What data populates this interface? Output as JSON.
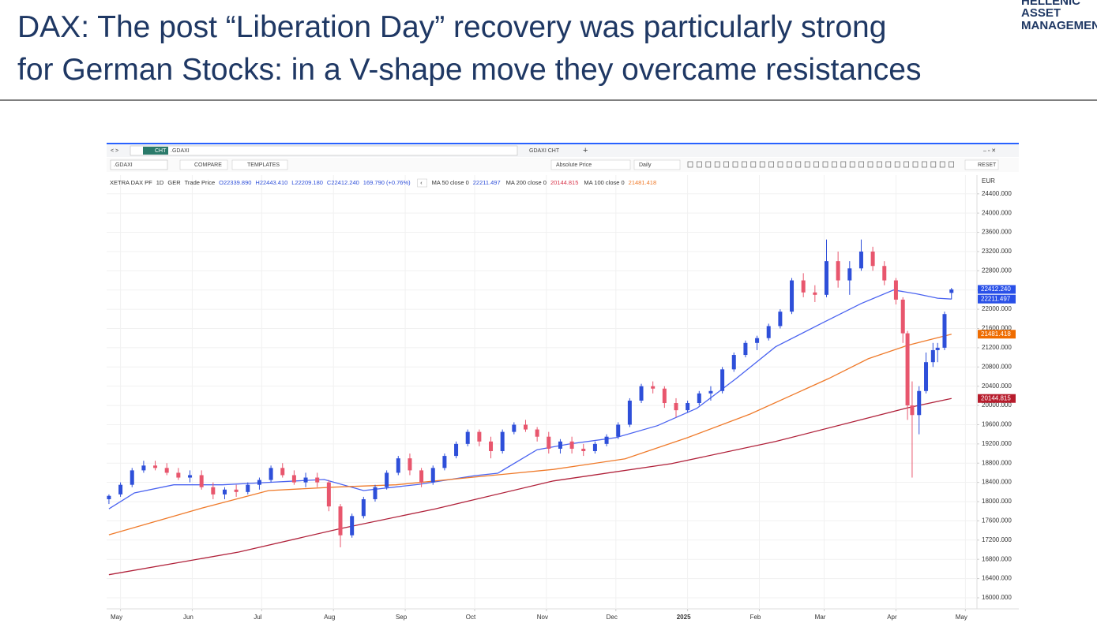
{
  "slide": {
    "title_lines": [
      "DAX: The post “Liberation Day” recovery was particularly strong",
      "for German Stocks: in a V-shape move they overcame resistances"
    ],
    "logo_lines": [
      "HELLENIC",
      "ASSET",
      "MANAGEMENT"
    ]
  },
  "toolbar": {
    "tab_symbol": "CHT",
    "search_text": ".GDAXI",
    "tab_title": "GDAXI CHT",
    "symbol_box": ".GDAXI",
    "compare": "COMPARE",
    "templates": "TEMPLATES",
    "price_mode": "Absolute Price",
    "interval": "Daily",
    "reset": "RESET",
    "currency": "EUR"
  },
  "header": {
    "symbol": "XETRA DAX PF",
    "interval": "1D",
    "exchange": "GER",
    "price_type": "Trade Price",
    "open": "O22339.890",
    "high": "H22443.410",
    "low": "L22209.180",
    "close": "C22412.240",
    "change": "169.790 (+0.76%)"
  },
  "chart_data": {
    "type": "candlestick",
    "up_color": "#2e4fd9",
    "down_color": "#e8566d",
    "candles": {
      "x": [
        0,
        5,
        10,
        15,
        20,
        25,
        30,
        35,
        40,
        45,
        50,
        55,
        60,
        65,
        70,
        75,
        80,
        85,
        90,
        95,
        100,
        105,
        110,
        115,
        120,
        125,
        130,
        135,
        140,
        145,
        150,
        155,
        160,
        165,
        170,
        175,
        180,
        185,
        190,
        195,
        200,
        205,
        210,
        215,
        220,
        225,
        230,
        235,
        240,
        245,
        250,
        255,
        260,
        265,
        270,
        275,
        280,
        285,
        290,
        295,
        300,
        305,
        310,
        315,
        320,
        325,
        330,
        335,
        340,
        343,
        345,
        347,
        350,
        353,
        356,
        358,
        361,
        364
      ],
      "open": [
        18050,
        18150,
        18350,
        18650,
        18750,
        18700,
        18600,
        18500,
        18550,
        18300,
        18150,
        18250,
        18200,
        18350,
        18450,
        18700,
        18550,
        18400,
        18500,
        18400,
        17900,
        17300,
        17700,
        18050,
        18300,
        18600,
        18900,
        18650,
        18400,
        18700,
        18950,
        19200,
        19450,
        19250,
        19050,
        19450,
        19600,
        19500,
        19350,
        19100,
        19250,
        19100,
        19050,
        19200,
        19350,
        19600,
        20100,
        20400,
        20350,
        20050,
        19900,
        20050,
        20250,
        20300,
        20750,
        21050,
        21300,
        21400,
        21650,
        21950,
        22600,
        22350,
        22300,
        23000,
        22600,
        22850,
        23200,
        22900,
        22600,
        22200,
        21500,
        20000,
        19800,
        20300,
        20900,
        21150,
        21200,
        22339.89
      ],
      "high": [
        18150,
        18400,
        18700,
        18850,
        18850,
        18800,
        18700,
        18650,
        18650,
        18400,
        18300,
        18350,
        18400,
        18500,
        18750,
        18800,
        18650,
        18600,
        18600,
        18450,
        17950,
        17750,
        18100,
        18350,
        18650,
        18950,
        19000,
        18700,
        18750,
        19000,
        19250,
        19500,
        19500,
        19350,
        19500,
        19650,
        19700,
        19550,
        19450,
        19300,
        19350,
        19200,
        19250,
        19400,
        19650,
        20150,
        20450,
        20500,
        20400,
        20150,
        20100,
        20300,
        20400,
        20800,
        21100,
        21350,
        21450,
        21700,
        22000,
        22650,
        22750,
        22500,
        23450,
        23200,
        23000,
        23450,
        23300,
        23000,
        22650,
        22250,
        21550,
        20500,
        20400,
        21100,
        21300,
        21300,
        21950,
        22443.41
      ],
      "low": [
        17950,
        18100,
        18300,
        18600,
        18650,
        18550,
        18450,
        18400,
        18250,
        18050,
        18050,
        18100,
        18150,
        18250,
        18400,
        18500,
        18350,
        18300,
        18300,
        17800,
        17050,
        17250,
        17650,
        18000,
        18250,
        18550,
        18550,
        18300,
        18350,
        18650,
        18900,
        19150,
        19150,
        18900,
        19000,
        19400,
        19450,
        19250,
        19000,
        19000,
        19000,
        18950,
        19000,
        19150,
        19300,
        19550,
        20050,
        20250,
        19950,
        19750,
        19850,
        20000,
        20100,
        20250,
        20700,
        21000,
        21150,
        21350,
        21600,
        21900,
        22250,
        22150,
        22250,
        22450,
        22300,
        22800,
        22800,
        22500,
        22100,
        21300,
        19700,
        18500,
        19400,
        20250,
        20800,
        20900,
        21150,
        22209.18
      ],
      "close": [
        18120,
        18350,
        18650,
        18750,
        18700,
        18600,
        18500,
        18550,
        18300,
        18150,
        18250,
        18200,
        18350,
        18450,
        18700,
        18550,
        18400,
        18500,
        18400,
        17900,
        17300,
        17700,
        18050,
        18300,
        18600,
        18900,
        18650,
        18400,
        18700,
        18950,
        19200,
        19450,
        19250,
        19050,
        19450,
        19600,
        19500,
        19350,
        19100,
        19250,
        19100,
        19050,
        19200,
        19350,
        19600,
        20100,
        20400,
        20350,
        20050,
        19900,
        20050,
        20250,
        20300,
        20750,
        21050,
        21300,
        21400,
        21650,
        21950,
        22600,
        22350,
        22300,
        23000,
        22600,
        22850,
        23200,
        22900,
        22600,
        22200,
        21500,
        20000,
        19800,
        20300,
        20900,
        21150,
        21200,
        21900,
        22412.24
      ]
    },
    "series": [
      {
        "name": "MA 50 close 0",
        "color": "#4a63f0",
        "label_color": "#2e4fd9",
        "x": [
          0,
          11,
          28,
          49,
          69,
          93,
          110,
          134,
          158,
          168,
          185,
          199,
          219,
          237,
          254,
          271,
          288,
          308,
          325,
          339,
          349,
          358,
          364
        ],
        "values": [
          17850,
          18180,
          18350,
          18350,
          18400,
          18460,
          18230,
          18360,
          18540,
          18590,
          19080,
          19200,
          19330,
          19580,
          19940,
          20560,
          21220,
          21710,
          22120,
          22400,
          22320,
          22230,
          22211.497
        ]
      },
      {
        "name": "MA 200 close 0",
        "color": "#b0213a",
        "label_color": "#d8344a",
        "x": [
          0,
          56,
          100,
          141,
          192,
          243,
          288,
          328,
          345,
          364
        ],
        "values": [
          16480,
          16950,
          17440,
          17850,
          18430,
          18790,
          19250,
          19740,
          19950,
          20144.815
        ]
      },
      {
        "name": "MA 100 close 0",
        "color": "#ef7a2a",
        "label_color": "#ef7a2a",
        "x": [
          0,
          39,
          69,
          97,
          124,
          158,
          192,
          223,
          250,
          277,
          311,
          328,
          345,
          364
        ],
        "values": [
          17310,
          17850,
          18230,
          18300,
          18350,
          18510,
          18670,
          18890,
          19330,
          19820,
          20560,
          20970,
          21250,
          21481.418
        ]
      }
    ],
    "price_tags": [
      {
        "value": 22412.24,
        "label": "22412.240",
        "color": "#2950e8"
      },
      {
        "value": 22211.497,
        "label": "22211.497",
        "color": "#2950e8"
      },
      {
        "value": 21481.418,
        "label": "21481.418",
        "color": "#ef6c00"
      },
      {
        "value": 20144.815,
        "label": "20144.815",
        "color": "#b71c2c"
      }
    ],
    "xlim": [
      -1,
      375
    ],
    "xticks": [
      {
        "value": 5,
        "label": "May"
      },
      {
        "value": 36,
        "label": "Jun"
      },
      {
        "value": 66,
        "label": "Jul"
      },
      {
        "value": 97,
        "label": "Aug"
      },
      {
        "value": 128,
        "label": "Sep"
      },
      {
        "value": 158,
        "label": "Oct"
      },
      {
        "value": 189,
        "label": "Nov"
      },
      {
        "value": 219,
        "label": "Dec"
      },
      {
        "value": 250,
        "label": "2025"
      },
      {
        "value": 281,
        "label": "Feb"
      },
      {
        "value": 309,
        "label": "Mar"
      },
      {
        "value": 340,
        "label": "Apr"
      },
      {
        "value": 370,
        "label": "May"
      }
    ],
    "ylim": [
      15770,
      24790
    ],
    "yticks": [
      {
        "value": 16000,
        "label": "16000.000"
      },
      {
        "value": 16400,
        "label": "16400.000"
      },
      {
        "value": 16800,
        "label": "16800.000"
      },
      {
        "value": 17200,
        "label": "17200.000"
      },
      {
        "value": 17600,
        "label": "17600.000"
      },
      {
        "value": 18000,
        "label": "18000.000"
      },
      {
        "value": 18400,
        "label": "18400.000"
      },
      {
        "value": 18800,
        "label": "18800.000"
      },
      {
        "value": 19200,
        "label": "19200.000"
      },
      {
        "value": 19600,
        "label": "19600.000"
      },
      {
        "value": 20000,
        "label": "20000.000"
      },
      {
        "value": 20400,
        "label": "20400.000"
      },
      {
        "value": 20800,
        "label": "20800.000"
      },
      {
        "value": 21200,
        "label": "21200.000"
      },
      {
        "value": 21600,
        "label": "21600.000"
      },
      {
        "value": 22000,
        "label": "22000.000"
      },
      {
        "value": 22400,
        "label": "22400.000"
      },
      {
        "value": 22800,
        "label": "22800.000"
      },
      {
        "value": 23200,
        "label": "23200.000"
      },
      {
        "value": 23600,
        "label": "23600.000"
      },
      {
        "value": 24000,
        "label": "24000.000"
      },
      {
        "value": 24400,
        "label": "24400.000"
      }
    ],
    "grid": true
  }
}
